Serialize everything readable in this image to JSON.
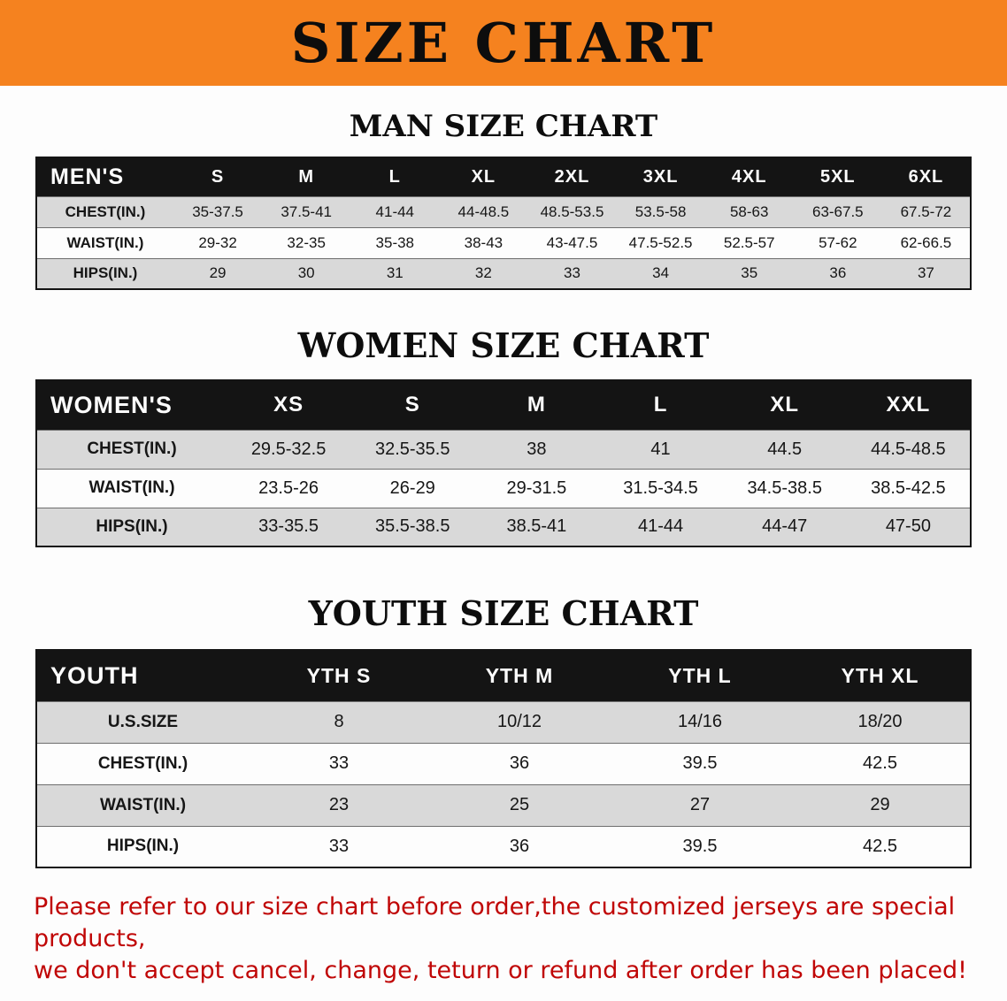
{
  "banner": {
    "title": "SIZE CHART"
  },
  "men": {
    "title": "MAN SIZE CHART",
    "header": [
      "MEN'S",
      "S",
      "M",
      "L",
      "XL",
      "2XL",
      "3XL",
      "4XL",
      "5XL",
      "6XL"
    ],
    "rows": [
      [
        "CHEST(IN.)",
        "35-37.5",
        "37.5-41",
        "41-44",
        "44-48.5",
        "48.5-53.5",
        "53.5-58",
        "58-63",
        "63-67.5",
        "67.5-72"
      ],
      [
        "WAIST(IN.)",
        "29-32",
        "32-35",
        "35-38",
        "38-43",
        "43-47.5",
        "47.5-52.5",
        "52.5-57",
        "57-62",
        "62-66.5"
      ],
      [
        "HIPS(IN.)",
        "29",
        "30",
        "31",
        "32",
        "33",
        "34",
        "35",
        "36",
        "37"
      ]
    ]
  },
  "women": {
    "title": "WOMEN SIZE CHART",
    "header": [
      "WOMEN'S",
      "XS",
      "S",
      "M",
      "L",
      "XL",
      "XXL"
    ],
    "rows": [
      [
        "CHEST(IN.)",
        "29.5-32.5",
        "32.5-35.5",
        "38",
        "41",
        "44.5",
        "44.5-48.5"
      ],
      [
        "WAIST(IN.)",
        "23.5-26",
        "26-29",
        "29-31.5",
        "31.5-34.5",
        "34.5-38.5",
        "38.5-42.5"
      ],
      [
        "HIPS(IN.)",
        "33-35.5",
        "35.5-38.5",
        "38.5-41",
        "41-44",
        "44-47",
        "47-50"
      ]
    ]
  },
  "youth": {
    "title": "YOUTH SIZE CHART",
    "header": [
      "YOUTH",
      "YTH S",
      "YTH M",
      "YTH L",
      "YTH XL"
    ],
    "rows": [
      [
        "U.S.SIZE",
        "8",
        "10/12",
        "14/16",
        "18/20"
      ],
      [
        "CHEST(IN.)",
        "33",
        "36",
        "39.5",
        "42.5"
      ],
      [
        "WAIST(IN.)",
        "23",
        "25",
        "27",
        "29"
      ],
      [
        "HIPS(IN.)",
        "33",
        "36",
        "39.5",
        "42.5"
      ]
    ]
  },
  "disclaimer": {
    "line1": "Please refer to our size chart before order,the customized jerseys are special products,",
    "line2": "we don't accept cancel, change, teturn or refund after order has been placed!"
  },
  "colors": {
    "banner_orange": "#F5821F",
    "table_header_black": "#141414",
    "row_stripe_gray": "#D9D9D9",
    "disclaimer_red": "#C00606"
  }
}
